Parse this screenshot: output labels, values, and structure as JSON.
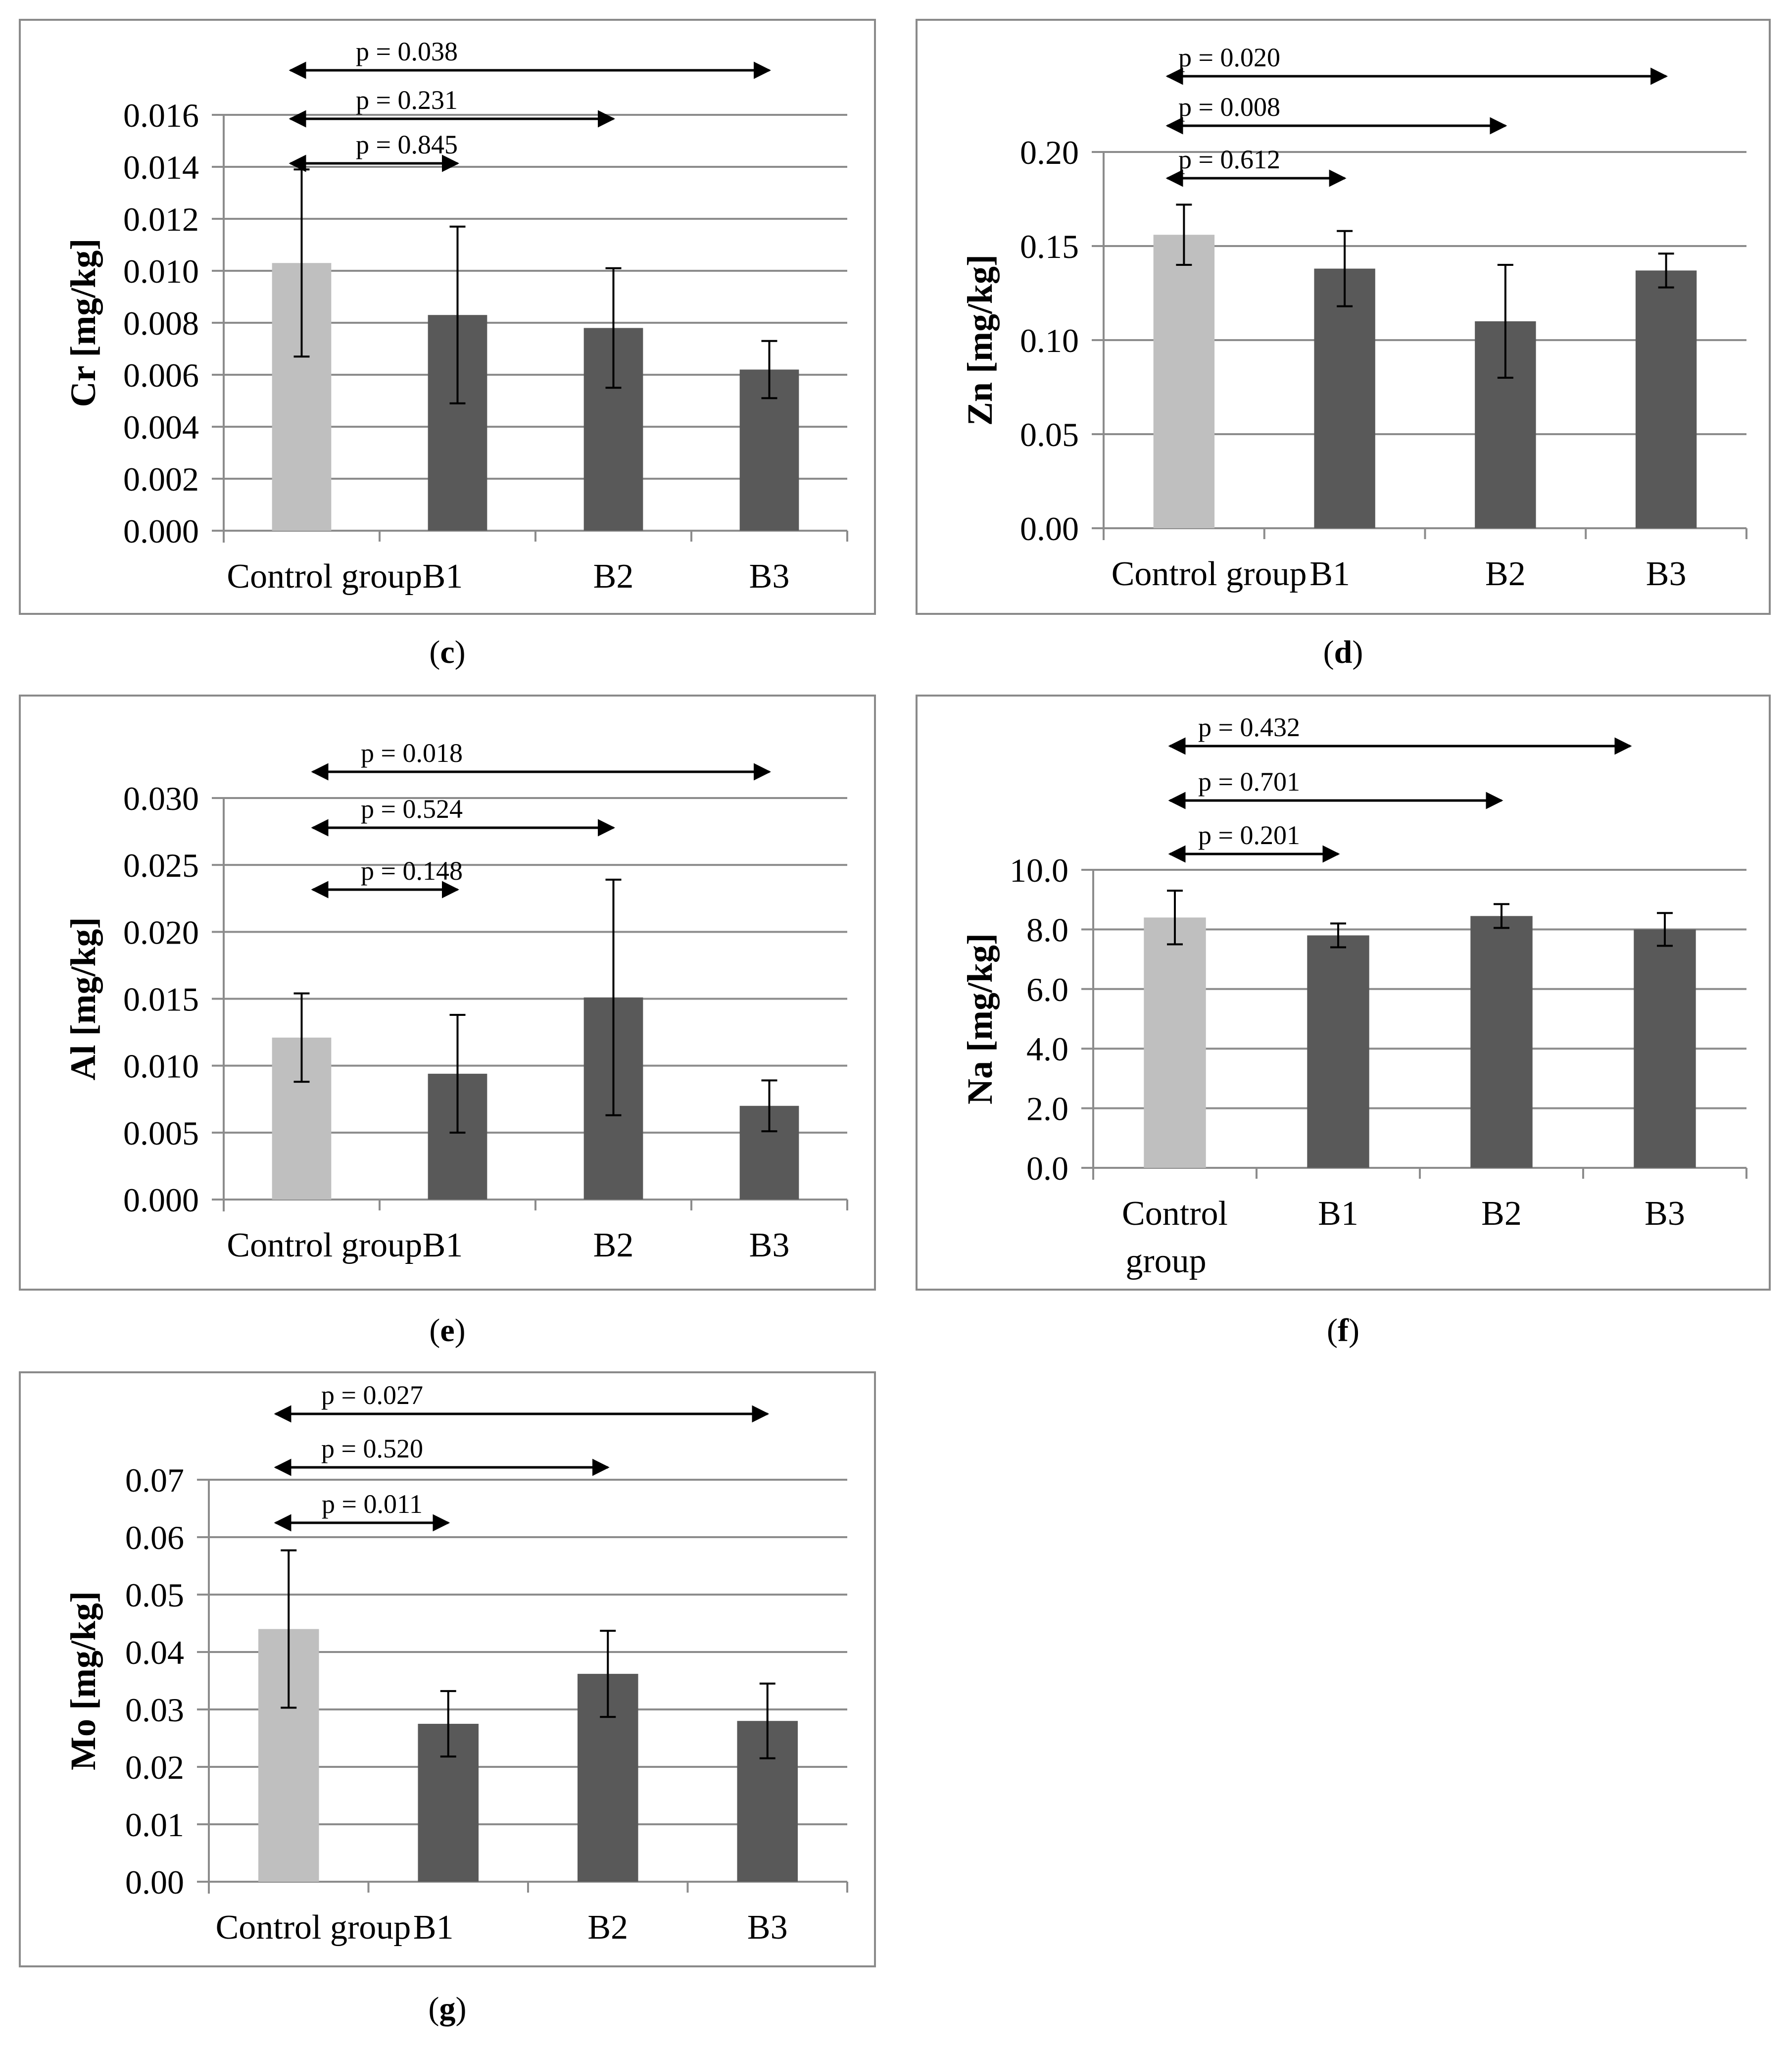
{
  "colors": {
    "control": "#bfbfbf",
    "treatment": "#595959",
    "grid": "#8c8c8c",
    "axis": "#8c8c8c"
  },
  "chart_data": [
    {
      "id": "c",
      "type": "bar",
      "caption_letter": "c",
      "ylabel": "Cr [mg/kg]",
      "ylim": [
        0,
        0.016
      ],
      "yticks": [
        "0.000",
        "0.002",
        "0.004",
        "0.006",
        "0.008",
        "0.010",
        "0.012",
        "0.014",
        "0.016"
      ],
      "categories": [
        "Control group",
        "B1",
        "B2",
        "B3"
      ],
      "values": [
        0.0103,
        0.0083,
        0.0078,
        0.0062
      ],
      "errors": [
        0.0036,
        0.0034,
        0.0023,
        0.0011
      ],
      "comparisons": [
        {
          "label": "p = 0.038",
          "to": "B3"
        },
        {
          "label": "p = 0.231",
          "to": "B2"
        },
        {
          "label": "p = 0.845",
          "to": "B1"
        }
      ]
    },
    {
      "id": "d",
      "type": "bar",
      "caption_letter": "d",
      "ylabel": "Zn [mg/kg]",
      "ylim": [
        0,
        0.2
      ],
      "yticks": [
        "0.00",
        "0.05",
        "0.10",
        "0.15",
        "0.20"
      ],
      "categories": [
        "Control group",
        "B1",
        "B2",
        "B3"
      ],
      "values": [
        0.156,
        0.138,
        0.11,
        0.137
      ],
      "errors": [
        0.016,
        0.02,
        0.03,
        0.009
      ],
      "comparisons": [
        {
          "label": "p = 0.020",
          "to": "B3"
        },
        {
          "label": "p = 0.008",
          "to": "B2"
        },
        {
          "label": "p = 0.612",
          "to": "B1"
        }
      ]
    },
    {
      "id": "e",
      "type": "bar",
      "caption_letter": "e",
      "ylabel": "Al [mg/kg]",
      "ylim": [
        0,
        0.03
      ],
      "yticks": [
        "0.000",
        "0.005",
        "0.010",
        "0.015",
        "0.020",
        "0.025",
        "0.030"
      ],
      "categories": [
        "Control group",
        "B1",
        "B2",
        "B3"
      ],
      "values": [
        0.0121,
        0.0094,
        0.0151,
        0.007
      ],
      "errors": [
        0.0033,
        0.0044,
        0.0088,
        0.0019
      ],
      "comparisons": [
        {
          "label": "p = 0.018",
          "to": "B3"
        },
        {
          "label": "p = 0.524",
          "to": "B2"
        },
        {
          "label": "p = 0.148",
          "to": "B1"
        }
      ]
    },
    {
      "id": "f",
      "type": "bar",
      "caption_letter": "f",
      "ylabel": "Na [mg/kg]",
      "ylim": [
        0,
        10.0
      ],
      "yticks": [
        "0.0",
        "2.0",
        "4.0",
        "6.0",
        "8.0",
        "10.0"
      ],
      "categories": [
        "Control group",
        "B1",
        "B2",
        "B3"
      ],
      "values": [
        8.4,
        7.8,
        8.45,
        8.0
      ],
      "errors": [
        0.9,
        0.4,
        0.4,
        0.55
      ],
      "comparisons": [
        {
          "label": "p = 0.432",
          "to": "B3"
        },
        {
          "label": "p = 0.701",
          "to": "B2"
        },
        {
          "label": "p = 0.201",
          "to": "B1"
        }
      ]
    },
    {
      "id": "g",
      "type": "bar",
      "caption_letter": "g",
      "ylabel": "Mo [mg/kg]",
      "ylim": [
        0,
        0.07
      ],
      "yticks": [
        "0.00",
        "0.01",
        "0.02",
        "0.03",
        "0.04",
        "0.05",
        "0.06",
        "0.07"
      ],
      "categories": [
        "Control group",
        "B1",
        "B2",
        "B3"
      ],
      "values": [
        0.044,
        0.0275,
        0.0362,
        0.028
      ],
      "errors": [
        0.0137,
        0.0057,
        0.0075,
        0.0065
      ],
      "comparisons": [
        {
          "label": "p = 0.027",
          "to": "B3"
        },
        {
          "label": "p = 0.520",
          "to": "B2"
        },
        {
          "label": "p = 0.011",
          "to": "B1"
        }
      ]
    }
  ]
}
